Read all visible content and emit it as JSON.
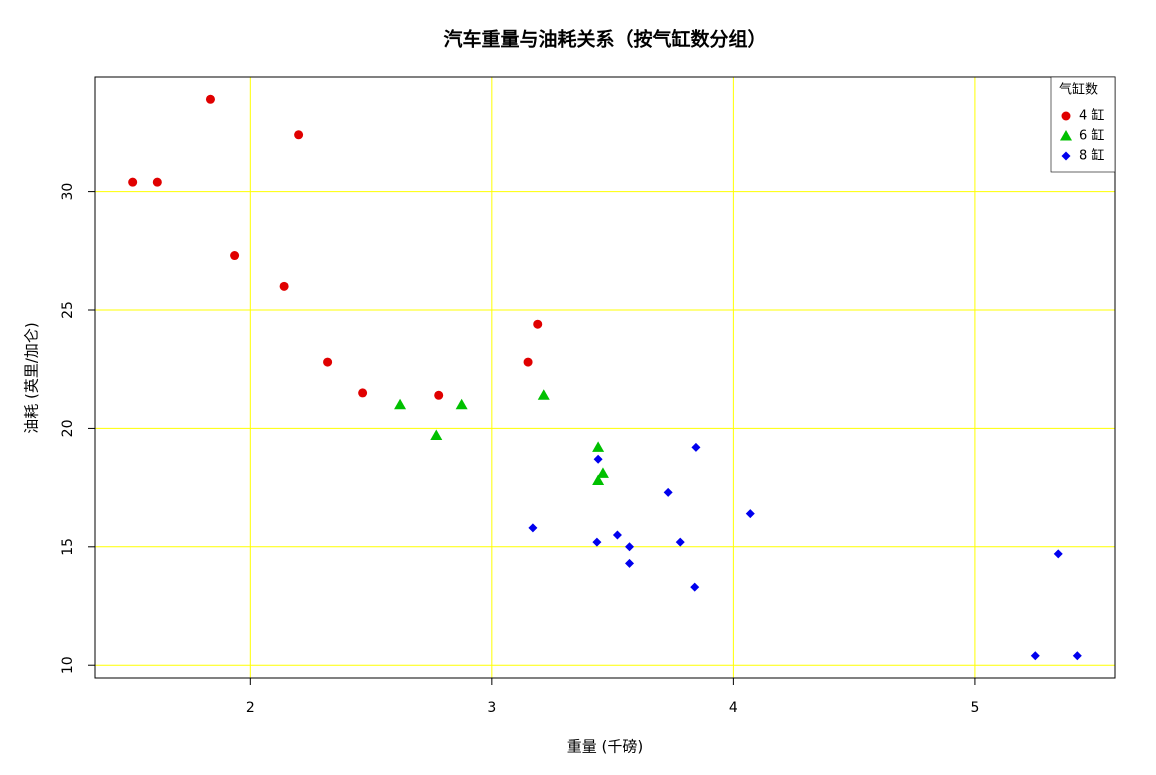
{
  "chart_data": {
    "type": "scatter",
    "title": "汽车重量与油耗关系（按气缸数分组）",
    "x_label": "重量 (千磅)",
    "y_label": "油耗 (英里/加仑)",
    "xlim": [
      1.357,
      5.58
    ],
    "ylim": [
      9.46,
      34.84
    ],
    "xticks": [
      2,
      3,
      4,
      5
    ],
    "yticks": [
      10,
      15,
      20,
      25,
      30
    ],
    "grid": true,
    "grid_color": "#ffff00",
    "legend_title": "气缸数",
    "legend_position": "top-right",
    "series": [
      {
        "name": "4 缸",
        "color": "#e00000",
        "marker": "circle",
        "x": [
          2.32,
          3.19,
          3.15,
          2.2,
          1.615,
          1.835,
          2.465,
          1.935,
          2.14,
          1.513,
          2.78
        ],
        "values": [
          22.8,
          24.4,
          22.8,
          32.4,
          30.4,
          33.9,
          21.5,
          27.3,
          26.0,
          30.4,
          21.4
        ]
      },
      {
        "name": "6 缸",
        "color": "#00c000",
        "marker": "triangle",
        "x": [
          2.62,
          2.875,
          3.215,
          3.46,
          3.44,
          3.44,
          2.77
        ],
        "values": [
          21.0,
          21.0,
          21.4,
          18.1,
          19.2,
          17.8,
          19.7
        ]
      },
      {
        "name": "8 缸",
        "color": "#0000ee",
        "marker": "diamond",
        "x": [
          3.44,
          3.57,
          4.07,
          3.73,
          3.78,
          5.25,
          5.424,
          5.345,
          3.52,
          3.435,
          3.84,
          3.845,
          3.17,
          3.57
        ],
        "values": [
          18.7,
          14.3,
          16.4,
          17.3,
          15.2,
          10.4,
          10.4,
          14.7,
          15.5,
          15.2,
          13.3,
          19.2,
          15.8,
          15.0
        ]
      }
    ]
  }
}
